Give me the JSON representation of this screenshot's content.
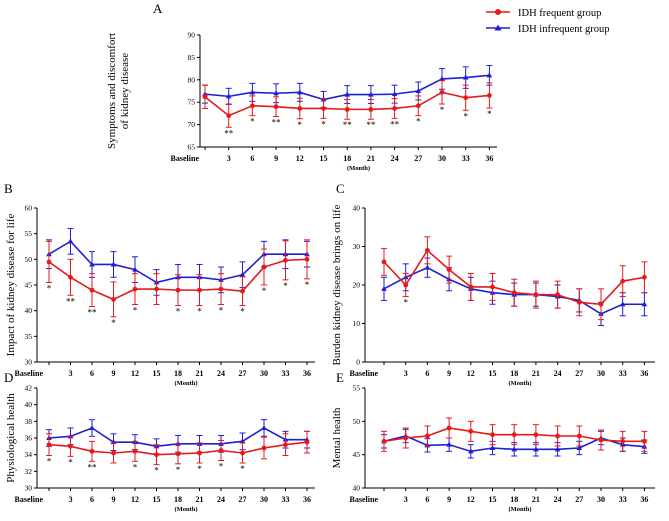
{
  "legend": {
    "items": [
      {
        "name": "IDH frequent group",
        "color": "#e41a1c",
        "marker": "circle"
      },
      {
        "name": "IDH infrequent group",
        "color": "#1f1fd6",
        "marker": "triangle"
      }
    ]
  },
  "chart_data": [
    {
      "panel": "A",
      "type": "line",
      "ylabel": "Symptoms and discomfort of kidney disease",
      "xlabel": "(Month)",
      "categories": [
        "Baseline",
        "3",
        "6",
        "9",
        "12",
        "15",
        "18",
        "21",
        "24",
        "27",
        "30",
        "33",
        "36"
      ],
      "ylim": [
        65,
        90
      ],
      "yticks": [
        65,
        70,
        75,
        80,
        85,
        90
      ],
      "series": [
        {
          "name": "IDH frequent group",
          "values": [
            76.2,
            72.0,
            74.2,
            74.0,
            73.6,
            73.6,
            73.4,
            73.4,
            73.6,
            74.2,
            77.2,
            76.0,
            76.5
          ],
          "err": [
            2.6,
            2.6,
            2.2,
            2.2,
            2.3,
            2.2,
            2.2,
            2.2,
            2.2,
            2.2,
            2.6,
            2.8,
            2.8
          ]
        },
        {
          "name": "IDH infrequent group",
          "values": [
            76.8,
            76.3,
            77.2,
            77.0,
            77.2,
            75.6,
            76.7,
            76.7,
            76.8,
            77.5,
            80.2,
            80.5,
            81.0
          ],
          "err": [
            2.0,
            1.8,
            2.0,
            2.1,
            2.0,
            1.8,
            2.0,
            2.0,
            2.0,
            2.0,
            2.3,
            2.4,
            2.2
          ]
        }
      ],
      "significance": [
        "",
        "**",
        "*",
        "**",
        "*",
        "*",
        "**",
        "**",
        "**",
        "*",
        "*",
        "*",
        "*"
      ]
    },
    {
      "panel": "B",
      "type": "line",
      "ylabel": "Impact of kidney disease for life",
      "xlabel": "(Month)",
      "categories": [
        "Baseline",
        "3",
        "6",
        "9",
        "12",
        "15",
        "18",
        "21",
        "24",
        "27",
        "30",
        "33",
        "36"
      ],
      "ylim": [
        30,
        60
      ],
      "yticks": [
        30,
        35,
        40,
        45,
        50,
        55,
        60
      ],
      "series": [
        {
          "name": "IDH frequent group",
          "values": [
            49.5,
            46.5,
            44.0,
            42.2,
            44.2,
            44.2,
            44.0,
            44.0,
            44.2,
            43.8,
            48.5,
            49.8,
            50.0
          ],
          "err": [
            4.0,
            3.5,
            3.2,
            3.4,
            3.0,
            3.0,
            3.0,
            3.0,
            3.0,
            2.8,
            3.5,
            3.8,
            3.8
          ]
        },
        {
          "name": "IDH infrequent group",
          "values": [
            51.0,
            53.5,
            49.0,
            49.0,
            48.0,
            45.5,
            46.5,
            46.5,
            46.0,
            47.0,
            51.0,
            51.0,
            51.0
          ],
          "err": [
            2.8,
            2.5,
            2.5,
            2.5,
            2.5,
            2.5,
            2.5,
            2.5,
            2.5,
            2.5,
            2.5,
            2.8,
            2.5
          ]
        }
      ],
      "significance": [
        "*",
        "**",
        "**",
        "*",
        "*",
        "",
        "*",
        "*",
        "*",
        "*",
        "*",
        "*",
        "*"
      ]
    },
    {
      "panel": "C",
      "type": "line",
      "ylabel": "Burden kidney disease brings on life",
      "xlabel": "(Month)",
      "categories": [
        "Baseline",
        "3",
        "6",
        "9",
        "12",
        "15",
        "18",
        "21",
        "24",
        "27",
        "30",
        "33",
        "36"
      ],
      "ylim": [
        0,
        40
      ],
      "yticks": [
        0,
        10,
        20,
        30,
        40
      ],
      "series": [
        {
          "name": "IDH frequent group",
          "values": [
            26.0,
            20.0,
            29.0,
            24.0,
            19.5,
            19.5,
            18.0,
            17.5,
            17.5,
            15.5,
            15.0,
            21.0,
            22.0
          ],
          "err": [
            3.5,
            3.0,
            3.5,
            3.5,
            3.5,
            3.5,
            3.5,
            3.5,
            3.5,
            3.5,
            4.0,
            4.0,
            4.0
          ]
        },
        {
          "name": "IDH infrequent group",
          "values": [
            19.0,
            22.0,
            24.5,
            21.5,
            19.0,
            18.0,
            17.5,
            17.5,
            17.0,
            16.0,
            12.5,
            15.0,
            15.0
          ],
          "err": [
            3.0,
            3.5,
            2.5,
            3.0,
            3.0,
            3.0,
            3.0,
            3.0,
            3.0,
            3.0,
            3.0,
            3.0,
            3.0
          ]
        }
      ],
      "significance": [
        "",
        "*",
        "",
        "",
        "",
        "",
        "",
        "",
        "",
        "",
        "",
        "",
        ""
      ]
    },
    {
      "panel": "D",
      "type": "line",
      "ylabel": "Physiological health",
      "xlabel": "(Month)",
      "categories": [
        "Baseline",
        "3",
        "6",
        "9",
        "12",
        "15",
        "18",
        "21",
        "24",
        "27",
        "30",
        "33",
        "36"
      ],
      "ylim": [
        30,
        42
      ],
      "yticks": [
        30,
        32,
        34,
        36,
        38,
        40,
        42
      ],
      "series": [
        {
          "name": "IDH frequent group",
          "values": [
            35.2,
            35.0,
            34.4,
            34.2,
            34.4,
            34.0,
            34.1,
            34.2,
            34.5,
            34.2,
            34.8,
            35.2,
            35.5
          ],
          "err": [
            1.3,
            1.2,
            1.2,
            1.2,
            1.2,
            1.2,
            1.2,
            1.2,
            1.2,
            1.2,
            1.3,
            1.3,
            1.3
          ]
        },
        {
          "name": "IDH infrequent group",
          "values": [
            36.0,
            36.2,
            37.2,
            35.5,
            35.5,
            35.0,
            35.3,
            35.3,
            35.3,
            35.6,
            37.2,
            35.8,
            35.8
          ],
          "err": [
            1.0,
            1.0,
            1.0,
            1.0,
            0.9,
            0.9,
            1.0,
            1.0,
            1.0,
            1.0,
            1.0,
            1.0,
            1.0
          ]
        }
      ],
      "significance": [
        "*",
        "*",
        "**",
        "",
        "*",
        "*",
        "*",
        "*",
        "*",
        "*",
        "",
        "",
        ""
      ]
    },
    {
      "panel": "E",
      "type": "line",
      "ylabel": "Mental health",
      "xlabel": "(Month)",
      "categories": [
        "Baseline",
        "3",
        "6",
        "9",
        "12",
        "15",
        "18",
        "21",
        "24",
        "27",
        "30",
        "33",
        "36"
      ],
      "ylim": [
        40,
        55
      ],
      "yticks": [
        40,
        45,
        50,
        55
      ],
      "series": [
        {
          "name": "IDH frequent group",
          "values": [
            47.0,
            47.5,
            47.8,
            49.0,
            48.5,
            48.0,
            48.0,
            48.0,
            47.8,
            47.8,
            47.2,
            47.0,
            47.0
          ],
          "err": [
            1.5,
            1.5,
            1.5,
            1.5,
            1.5,
            1.5,
            1.5,
            1.5,
            1.5,
            1.5,
            1.5,
            1.5,
            1.5
          ]
        },
        {
          "name": "IDH infrequent group",
          "values": [
            47.0,
            47.8,
            46.4,
            46.5,
            45.5,
            46.0,
            45.8,
            45.8,
            45.8,
            46.0,
            47.5,
            46.5,
            46.2
          ],
          "err": [
            1.0,
            1.0,
            1.0,
            1.0,
            1.0,
            1.0,
            1.0,
            1.0,
            1.0,
            1.0,
            1.0,
            1.0,
            1.0
          ]
        }
      ],
      "significance": [
        "",
        "",
        "",
        "",
        "",
        "",
        "",
        "",
        "",
        "",
        "",
        "",
        ""
      ]
    }
  ]
}
